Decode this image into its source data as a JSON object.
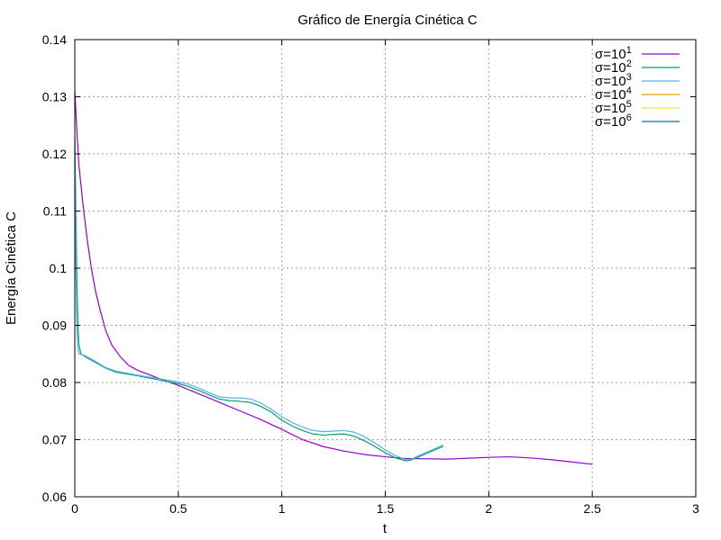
{
  "chart_data": {
    "type": "line",
    "title": "Gráfico de Energía Cinética C",
    "xlabel": "t",
    "ylabel": "Energía Cinética C",
    "xlim": [
      0,
      3
    ],
    "ylim": [
      0.06,
      0.14
    ],
    "x_ticks": [
      {
        "v": 0,
        "label": "0"
      },
      {
        "v": 0.5,
        "label": "0.5"
      },
      {
        "v": 1,
        "label": "1"
      },
      {
        "v": 1.5,
        "label": "1.5"
      },
      {
        "v": 2,
        "label": "2"
      },
      {
        "v": 2.5,
        "label": "2.5"
      },
      {
        "v": 3,
        "label": "3"
      }
    ],
    "y_ticks": [
      {
        "v": 0.06,
        "label": "0.06"
      },
      {
        "v": 0.07,
        "label": "0.07"
      },
      {
        "v": 0.08,
        "label": "0.08"
      },
      {
        "v": 0.09,
        "label": "0.09"
      },
      {
        "v": 0.1,
        "label": "0.1"
      },
      {
        "v": 0.11,
        "label": "0.11"
      },
      {
        "v": 0.12,
        "label": "0.12"
      },
      {
        "v": 0.13,
        "label": "0.13"
      },
      {
        "v": 0.14,
        "label": "0.14"
      }
    ],
    "grid": true,
    "legend_position": "top-right",
    "series": [
      {
        "name_base": "σ=10",
        "name_exp": "1",
        "color": "#9400d3",
        "points": [
          [
            0,
            0.131
          ],
          [
            0.01,
            0.124
          ],
          [
            0.02,
            0.118
          ],
          [
            0.04,
            0.111
          ],
          [
            0.06,
            0.105
          ],
          [
            0.08,
            0.1
          ],
          [
            0.1,
            0.096
          ],
          [
            0.12,
            0.093
          ],
          [
            0.15,
            0.089
          ],
          [
            0.18,
            0.0865
          ],
          [
            0.22,
            0.0845
          ],
          [
            0.26,
            0.083
          ],
          [
            0.3,
            0.0822
          ],
          [
            0.4,
            0.0808
          ],
          [
            0.5,
            0.0795
          ],
          [
            0.6,
            0.078
          ],
          [
            0.7,
            0.0765
          ],
          [
            0.8,
            0.075
          ],
          [
            0.9,
            0.0735
          ],
          [
            1.0,
            0.0718
          ],
          [
            1.1,
            0.07
          ],
          [
            1.2,
            0.0688
          ],
          [
            1.3,
            0.068
          ],
          [
            1.4,
            0.0674
          ],
          [
            1.5,
            0.067
          ],
          [
            1.6,
            0.0667
          ],
          [
            1.8,
            0.0666
          ],
          [
            2.0,
            0.0669
          ],
          [
            2.1,
            0.067
          ],
          [
            2.2,
            0.0668
          ],
          [
            2.3,
            0.0665
          ],
          [
            2.4,
            0.0661
          ],
          [
            2.5,
            0.0657
          ]
        ]
      },
      {
        "name_base": "σ=10",
        "name_exp": "2",
        "color": "#009e73",
        "points": [
          [
            0,
            0.123
          ],
          [
            0.005,
            0.11
          ],
          [
            0.01,
            0.098
          ],
          [
            0.015,
            0.09
          ],
          [
            0.02,
            0.0865
          ],
          [
            0.03,
            0.085
          ],
          [
            0.05,
            0.0845
          ],
          [
            0.1,
            0.0835
          ],
          [
            0.15,
            0.0825
          ],
          [
            0.2,
            0.0818
          ],
          [
            0.3,
            0.0812
          ],
          [
            0.4,
            0.0805
          ],
          [
            0.5,
            0.0798
          ],
          [
            0.55,
            0.0793
          ],
          [
            0.6,
            0.0786
          ],
          [
            0.65,
            0.0778
          ],
          [
            0.7,
            0.0771
          ],
          [
            0.75,
            0.0768
          ],
          [
            0.8,
            0.0767
          ],
          [
            0.85,
            0.0765
          ],
          [
            0.9,
            0.0758
          ],
          [
            0.95,
            0.0748
          ],
          [
            1.0,
            0.0734
          ],
          [
            1.05,
            0.0724
          ],
          [
            1.1,
            0.0716
          ],
          [
            1.15,
            0.071
          ],
          [
            1.2,
            0.0708
          ],
          [
            1.25,
            0.0709
          ],
          [
            1.3,
            0.071
          ],
          [
            1.35,
            0.0706
          ],
          [
            1.4,
            0.0698
          ],
          [
            1.45,
            0.0688
          ],
          [
            1.5,
            0.0677
          ],
          [
            1.55,
            0.0668
          ],
          [
            1.6,
            0.0663
          ],
          [
            1.62,
            0.0664
          ],
          [
            1.65,
            0.0668
          ],
          [
            1.7,
            0.0676
          ],
          [
            1.75,
            0.0684
          ],
          [
            1.78,
            0.0688
          ]
        ]
      },
      {
        "name_base": "σ=10",
        "name_exp": "3",
        "color": "#56b4e9",
        "points": [
          [
            0,
            0.122
          ],
          [
            0.005,
            0.1
          ],
          [
            0.01,
            0.09
          ],
          [
            0.015,
            0.086
          ],
          [
            0.02,
            0.085
          ],
          [
            0.05,
            0.0847
          ],
          [
            0.1,
            0.0837
          ],
          [
            0.15,
            0.0826
          ],
          [
            0.2,
            0.082
          ],
          [
            0.3,
            0.0813
          ],
          [
            0.4,
            0.0807
          ],
          [
            0.5,
            0.0801
          ],
          [
            0.55,
            0.0797
          ],
          [
            0.6,
            0.079
          ],
          [
            0.65,
            0.0782
          ],
          [
            0.7,
            0.0775
          ],
          [
            0.75,
            0.0773
          ],
          [
            0.8,
            0.0773
          ],
          [
            0.85,
            0.0771
          ],
          [
            0.9,
            0.0764
          ],
          [
            0.95,
            0.0753
          ],
          [
            1.0,
            0.074
          ],
          [
            1.05,
            0.073
          ],
          [
            1.1,
            0.0722
          ],
          [
            1.15,
            0.0716
          ],
          [
            1.2,
            0.0714
          ],
          [
            1.25,
            0.0715
          ],
          [
            1.3,
            0.0716
          ],
          [
            1.35,
            0.0713
          ],
          [
            1.4,
            0.0705
          ],
          [
            1.45,
            0.0694
          ],
          [
            1.5,
            0.0682
          ],
          [
            1.55,
            0.0672
          ],
          [
            1.6,
            0.0665
          ],
          [
            1.62,
            0.0665
          ],
          [
            1.65,
            0.067
          ],
          [
            1.7,
            0.0678
          ],
          [
            1.75,
            0.0686
          ],
          [
            1.78,
            0.0691
          ]
        ]
      },
      {
        "name_base": "σ=10",
        "name_exp": "4",
        "color": "#e69f00",
        "points": []
      },
      {
        "name_base": "σ=10",
        "name_exp": "5",
        "color": "#f0e442",
        "points": []
      },
      {
        "name_base": "σ=10",
        "name_exp": "6",
        "color": "#0072b2",
        "points": []
      }
    ]
  }
}
